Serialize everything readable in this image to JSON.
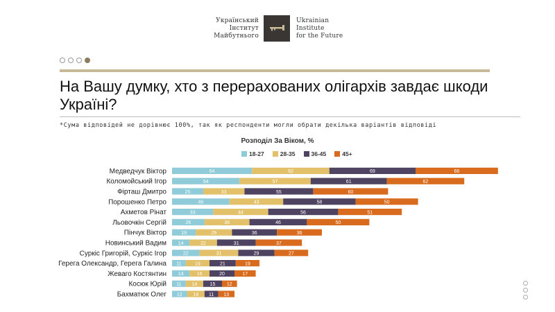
{
  "logo": {
    "left_lines": [
      "Український",
      "Інститут",
      "Майбутнього"
    ],
    "right_lines": [
      "Ukrainian",
      "Institute",
      "for the Future"
    ],
    "icon": "key-icon"
  },
  "slide_nav": {
    "count": 4,
    "active_index": 3
  },
  "title": "На Вашу думку, хто з перерахованих олігархів завдає шкоди Україні?",
  "note": "*Сума відповідей не дорівнює 100%, так як респонденти могли обрати декілька варіантів відповіді",
  "colors": {
    "accent_gold": "#c8b998",
    "series": [
      "#8fcbd8",
      "#e3c06a",
      "#4e4461",
      "#d96b1e"
    ]
  },
  "chart_data": {
    "type": "bar",
    "orientation": "horizontal",
    "stacked": true,
    "title": "Розподіл За Віком, %",
    "legend_position": "top",
    "categories": [
      "Медведчук Віктор",
      "Коломойський Ігор",
      "Фірташ Дмитро",
      "Порошенко Петро",
      "Ахметов Рінат",
      "Льовочкін Сергій",
      "Пінчук Віктор",
      "Новинський Вадим",
      "Суркіс Григорій, Суркіс Ігор",
      "Герега Олександр, Герега Галина",
      "Жеваго Костянтин",
      "Косюк Юрій",
      "Бахматюк Олег"
    ],
    "series": [
      {
        "name": "18-27",
        "values": [
          64,
          54,
          25,
          46,
          33,
          26,
          19,
          14,
          22,
          11,
          14,
          11,
          12
        ]
      },
      {
        "name": "28-35",
        "values": [
          62,
          57,
          33,
          43,
          44,
          36,
          29,
          22,
          31,
          19,
          16,
          14,
          14
        ]
      },
      {
        "name": "36-45",
        "values": [
          69,
          61,
          55,
          58,
          56,
          46,
          36,
          31,
          29,
          21,
          20,
          15,
          11
        ]
      },
      {
        "name": "45+",
        "values": [
          66,
          62,
          60,
          50,
          51,
          50,
          36,
          37,
          27,
          19,
          17,
          12,
          13
        ]
      }
    ]
  }
}
